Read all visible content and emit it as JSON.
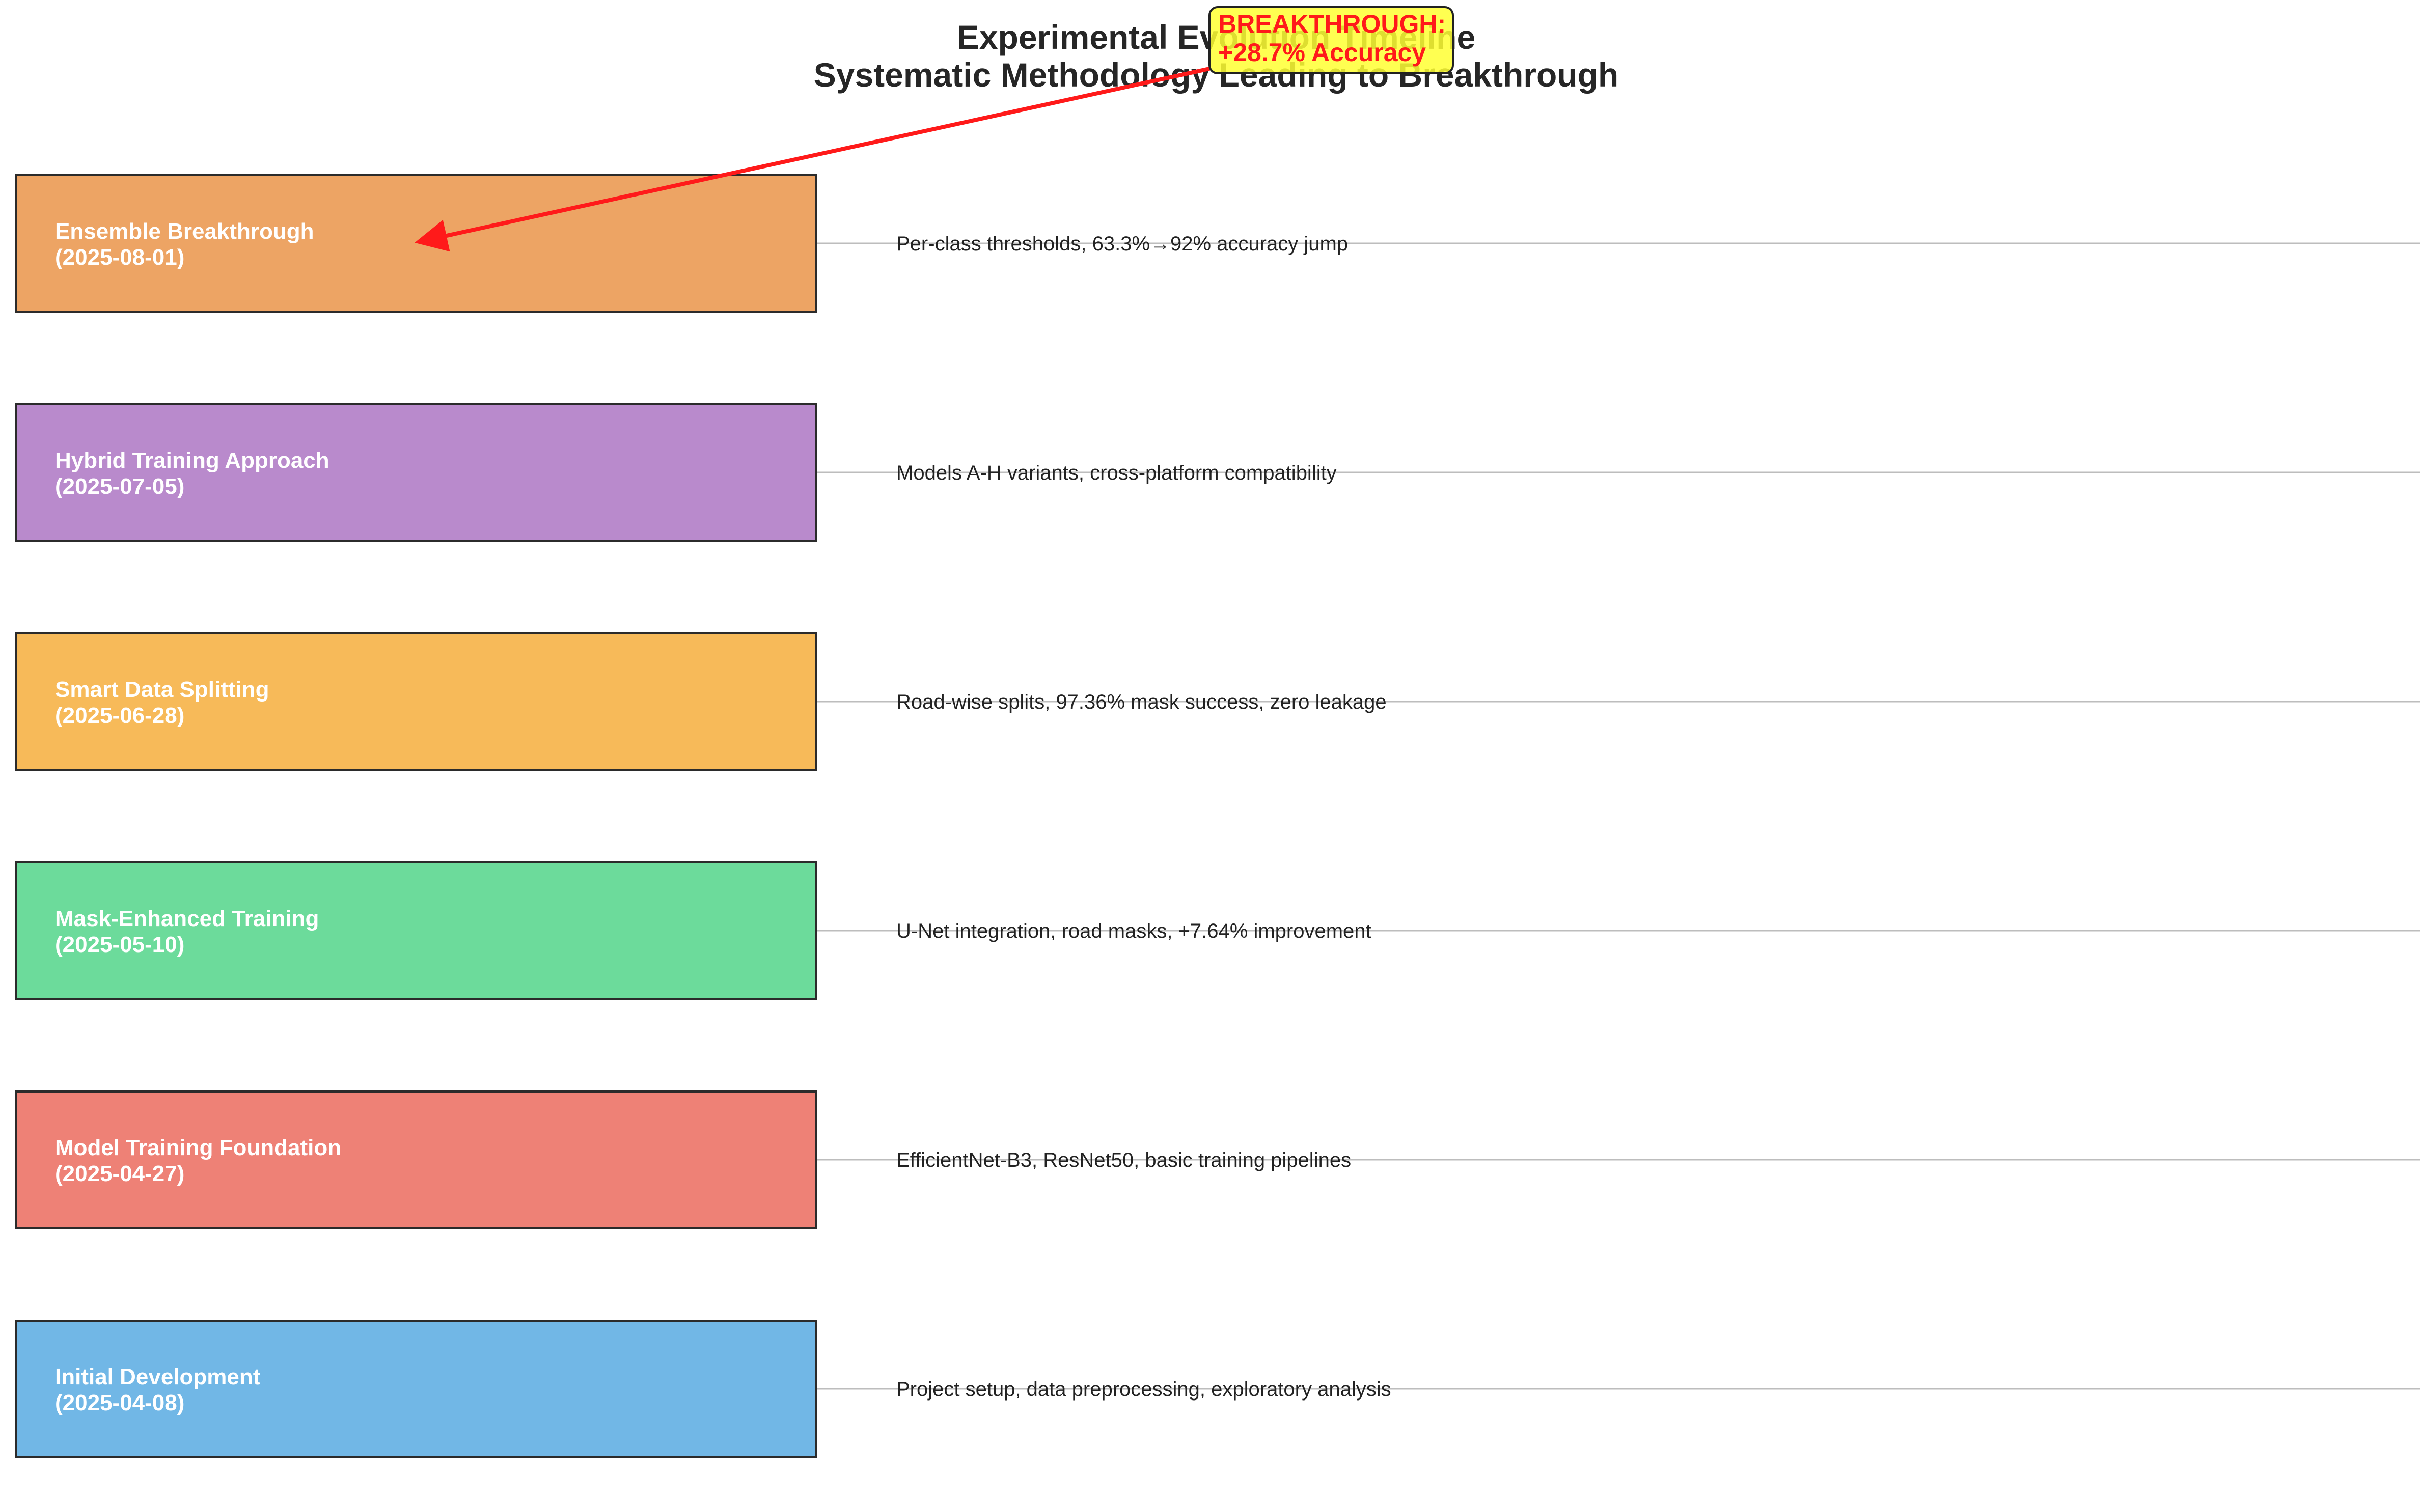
{
  "title": {
    "line1": "Experimental Evolution Timeline",
    "line2": "Systematic Methodology Leading to Breakthrough"
  },
  "phases": [
    {
      "name": "Ensemble Breakthrough",
      "date": "(2025-08-01)",
      "description": "Per-class thresholds, 63.3%→92% accuracy jump",
      "color": "#e67e22"
    },
    {
      "name": "Hybrid Training Approach",
      "date": "(2025-07-05)",
      "description": "Models A-H variants, cross-platform compatibility",
      "color": "#9b59b6"
    },
    {
      "name": "Smart Data Splitting",
      "date": "(2025-06-28)",
      "description": "Road-wise splits, 97.36% mask success, zero leakage",
      "color": "#f39c12"
    },
    {
      "name": "Mask-Enhanced Training",
      "date": "(2025-05-10)",
      "description": "U-Net integration, road masks, +7.64% improvement",
      "color": "#2ecc71"
    },
    {
      "name": "Model Training Foundation",
      "date": "(2025-04-27)",
      "description": "EfficientNet-B3, ResNet50, basic training pipelines",
      "color": "#e74c3c"
    },
    {
      "name": "Initial Development",
      "date": "(2025-04-08)",
      "description": "Project setup, data preprocessing, exploratory analysis",
      "color": "#3498db"
    }
  ],
  "callout": {
    "line1": "BREAKTHROUGH:",
    "line2": "+28.7% Accuracy",
    "text_color": "#ff1a1a",
    "background": "#ffff33",
    "arrow_color": "#ff1a1a",
    "target_phase": "Ensemble Breakthrough"
  }
}
